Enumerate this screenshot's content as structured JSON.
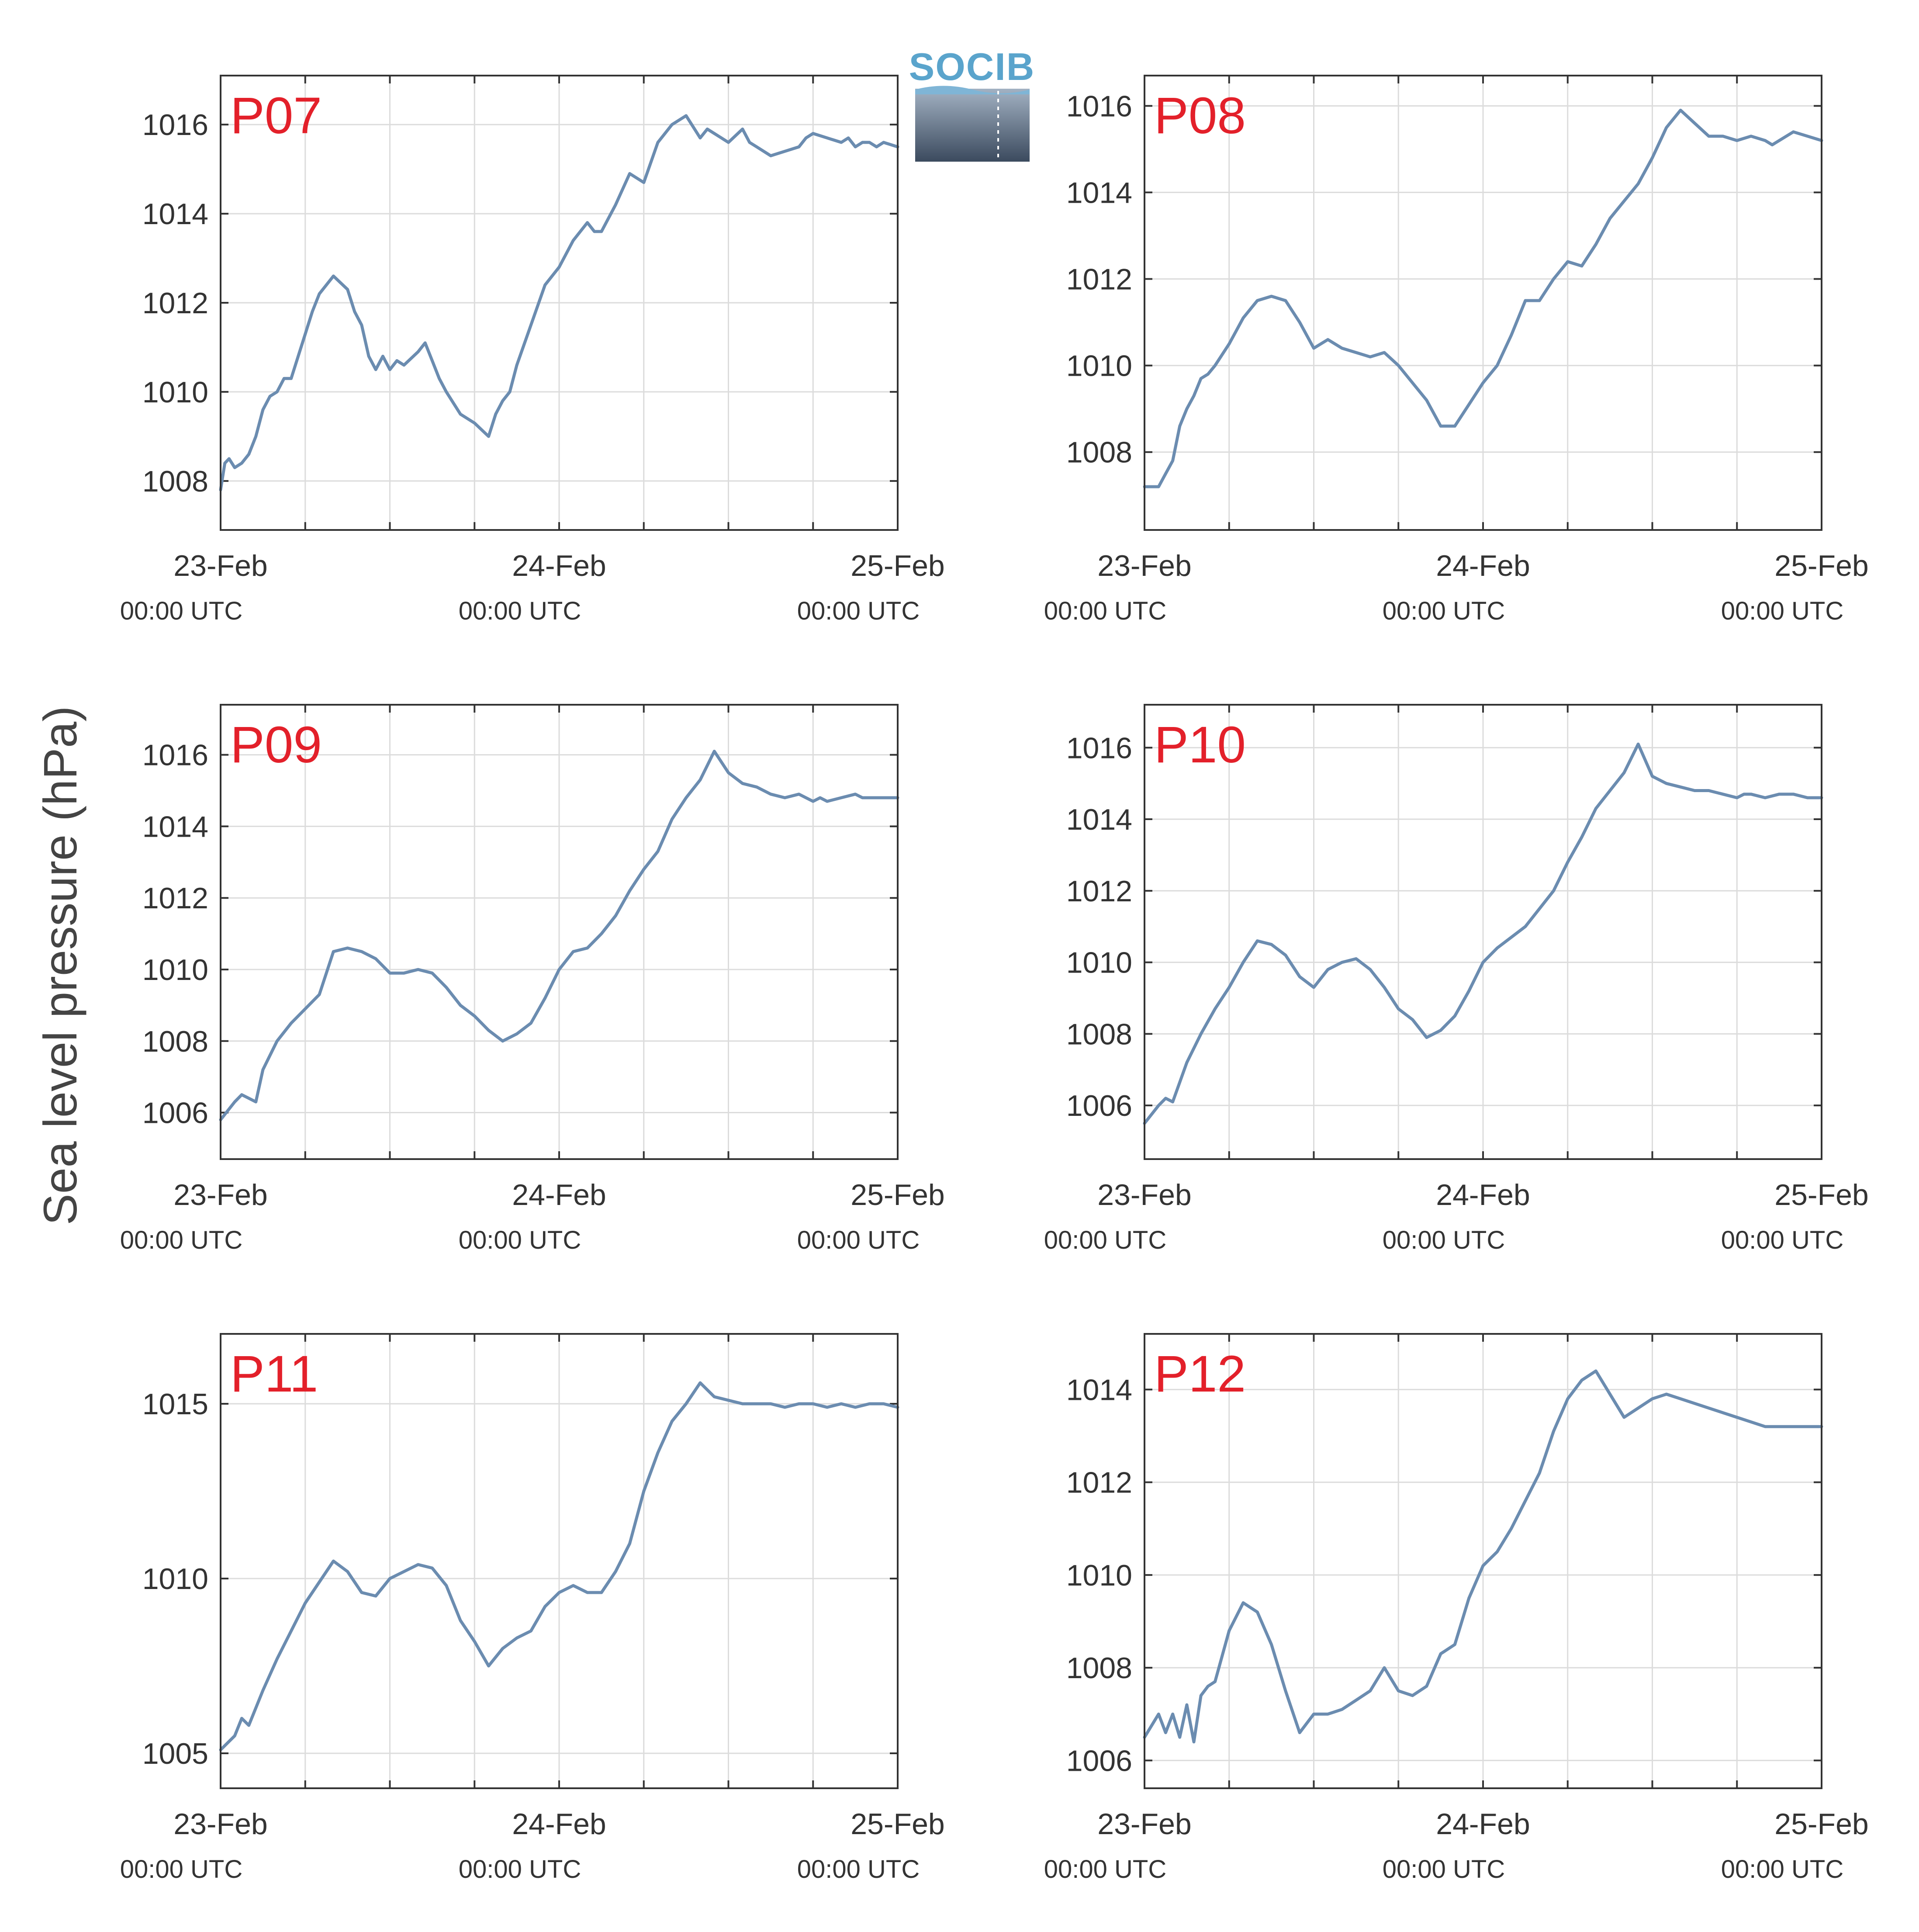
{
  "logo": {
    "text": "SOCIB"
  },
  "colors": {
    "line": "#6b8cb0",
    "label": "#e3202a",
    "grid": "#dcdcdc",
    "axis": "#333333"
  },
  "chart_data": [
    {
      "type": "line",
      "panel": "P07",
      "ylabel": "Sea level pressure (hPa)",
      "xlim": [
        0,
        48
      ],
      "ylim": [
        1006.9,
        1017.1
      ],
      "yticks": [
        1008,
        1010,
        1012,
        1014,
        1016
      ],
      "xticks": [
        0,
        6,
        12,
        18,
        24,
        30,
        36,
        42,
        48
      ],
      "xticklabels": [
        {
          "x": 0,
          "date": "23-Feb",
          "time": "00:00 UTC"
        },
        {
          "x": 24,
          "date": "24-Feb",
          "time": "00:00 UTC"
        },
        {
          "x": 48,
          "date": "25-Feb",
          "time": "00:00 UTC"
        }
      ],
      "grid": true,
      "x": [
        0,
        0.3,
        0.6,
        1,
        1.5,
        2,
        2.5,
        3,
        3.5,
        4,
        4.5,
        5,
        5.5,
        6,
        6.5,
        7,
        8,
        9,
        9.5,
        10,
        10.5,
        11,
        11.5,
        12,
        12.5,
        13,
        14,
        14.5,
        15,
        15.5,
        16,
        17,
        18,
        19,
        19.5,
        20,
        20.5,
        21,
        22,
        23,
        24,
        25,
        26,
        26.5,
        27,
        28,
        29,
        30,
        31,
        32,
        33,
        34,
        34.5,
        35,
        35.5,
        36,
        37,
        37.5,
        38,
        39,
        40,
        41,
        41.5,
        42,
        43,
        44,
        44.5,
        45,
        45.5,
        46,
        46.5,
        47,
        48
      ],
      "values": [
        1007.8,
        1008.4,
        1008.5,
        1008.3,
        1008.4,
        1008.6,
        1009.0,
        1009.6,
        1009.9,
        1010.0,
        1010.3,
        1010.3,
        1010.8,
        1011.3,
        1011.8,
        1012.2,
        1012.6,
        1012.3,
        1011.8,
        1011.5,
        1010.8,
        1010.5,
        1010.8,
        1010.5,
        1010.7,
        1010.6,
        1010.9,
        1011.1,
        1010.7,
        1010.3,
        1010.0,
        1009.5,
        1009.3,
        1009.0,
        1009.5,
        1009.8,
        1010.0,
        1010.6,
        1011.5,
        1012.4,
        1012.8,
        1013.4,
        1013.8,
        1013.6,
        1013.6,
        1014.2,
        1014.9,
        1014.7,
        1015.6,
        1016.0,
        1016.2,
        1015.7,
        1015.9,
        1015.8,
        1015.7,
        1015.6,
        1015.9,
        1015.6,
        1015.5,
        1015.3,
        1015.4,
        1015.5,
        1015.7,
        1015.8,
        1015.7,
        1015.6,
        1015.7,
        1015.5,
        1015.6,
        1015.6,
        1015.5,
        1015.6,
        1015.5
      ]
    },
    {
      "type": "line",
      "panel": "P08",
      "ylabel": "Sea level pressure (hPa)",
      "xlim": [
        0,
        48
      ],
      "ylim": [
        1006.2,
        1016.7
      ],
      "yticks": [
        1008,
        1010,
        1012,
        1014,
        1016
      ],
      "xticks": [
        0,
        6,
        12,
        18,
        24,
        30,
        36,
        42,
        48
      ],
      "xticklabels": [
        {
          "x": 0,
          "date": "23-Feb",
          "time": "00:00 UTC"
        },
        {
          "x": 24,
          "date": "24-Feb",
          "time": "00:00 UTC"
        },
        {
          "x": 48,
          "date": "25-Feb",
          "time": "00:00 UTC"
        }
      ],
      "grid": true,
      "x": [
        0,
        1,
        1.5,
        2,
        2.5,
        3,
        3.5,
        4,
        4.5,
        5,
        6,
        7,
        8,
        9,
        10,
        11,
        12,
        13,
        14,
        15,
        16,
        17,
        18,
        19,
        20,
        21,
        22,
        23,
        24,
        25,
        26,
        27,
        28,
        29,
        30,
        31,
        32,
        33,
        34,
        35,
        36,
        37,
        38,
        39,
        40,
        41,
        42,
        43,
        44,
        44.5,
        45,
        46,
        47,
        48
      ],
      "values": [
        1007.2,
        1007.2,
        1007.5,
        1007.8,
        1008.6,
        1009.0,
        1009.3,
        1009.7,
        1009.8,
        1010.0,
        1010.5,
        1011.1,
        1011.5,
        1011.6,
        1011.5,
        1011.0,
        1010.4,
        1010.6,
        1010.4,
        1010.3,
        1010.2,
        1010.3,
        1010.0,
        1009.6,
        1009.2,
        1008.6,
        1008.6,
        1009.1,
        1009.6,
        1010.0,
        1010.7,
        1011.5,
        1011.5,
        1012.0,
        1012.4,
        1012.3,
        1012.8,
        1013.4,
        1013.8,
        1014.2,
        1014.8,
        1015.5,
        1015.9,
        1015.6,
        1015.3,
        1015.3,
        1015.2,
        1015.3,
        1015.2,
        1015.1,
        1015.2,
        1015.4,
        1015.3,
        1015.2
      ]
    },
    {
      "type": "line",
      "panel": "P09",
      "ylabel": "Sea level pressure (hPa)",
      "xlim": [
        0,
        48
      ],
      "ylim": [
        1004.7,
        1017.4
      ],
      "yticks": [
        1006,
        1008,
        1010,
        1012,
        1014,
        1016
      ],
      "xticks": [
        0,
        6,
        12,
        18,
        24,
        30,
        36,
        42,
        48
      ],
      "xticklabels": [
        {
          "x": 0,
          "date": "23-Feb",
          "time": "00:00 UTC"
        },
        {
          "x": 24,
          "date": "24-Feb",
          "time": "00:00 UTC"
        },
        {
          "x": 48,
          "date": "25-Feb",
          "time": "00:00 UTC"
        }
      ],
      "grid": true,
      "x": [
        0,
        1,
        1.5,
        2,
        2.5,
        3,
        4,
        5,
        6,
        7,
        8,
        9,
        10,
        11,
        12,
        13,
        14,
        15,
        16,
        17,
        18,
        19,
        20,
        21,
        22,
        23,
        24,
        25,
        26,
        27,
        28,
        29,
        30,
        31,
        32,
        33,
        34,
        35,
        36,
        37,
        38,
        39,
        40,
        41,
        42,
        42.5,
        43,
        44,
        45,
        45.5,
        46,
        47,
        48
      ],
      "values": [
        1005.8,
        1006.3,
        1006.5,
        1006.4,
        1006.3,
        1007.2,
        1008.0,
        1008.5,
        1008.9,
        1009.3,
        1010.5,
        1010.6,
        1010.5,
        1010.3,
        1009.9,
        1009.9,
        1010.0,
        1009.9,
        1009.5,
        1009.0,
        1008.7,
        1008.3,
        1008.0,
        1008.2,
        1008.5,
        1009.2,
        1010.0,
        1010.5,
        1010.6,
        1011.0,
        1011.5,
        1012.2,
        1012.8,
        1013.3,
        1014.2,
        1014.8,
        1015.3,
        1016.1,
        1015.5,
        1015.2,
        1015.1,
        1014.9,
        1014.8,
        1014.9,
        1014.7,
        1014.8,
        1014.7,
        1014.8,
        1014.9,
        1014.8,
        1014.8,
        1014.8,
        1014.8
      ]
    },
    {
      "type": "line",
      "panel": "P10",
      "ylabel": "Sea level pressure (hPa)",
      "xlim": [
        0,
        48
      ],
      "ylim": [
        1004.5,
        1017.2
      ],
      "yticks": [
        1006,
        1008,
        1010,
        1012,
        1014,
        1016
      ],
      "xticks": [
        0,
        6,
        12,
        18,
        24,
        30,
        36,
        42,
        48
      ],
      "xticklabels": [
        {
          "x": 0,
          "date": "23-Feb",
          "time": "00:00 UTC"
        },
        {
          "x": 24,
          "date": "24-Feb",
          "time": "00:00 UTC"
        },
        {
          "x": 48,
          "date": "25-Feb",
          "time": "00:00 UTC"
        }
      ],
      "grid": true,
      "x": [
        0,
        1,
        1.5,
        2,
        3,
        4,
        5,
        6,
        7,
        8,
        9,
        10,
        11,
        12,
        13,
        14,
        15,
        16,
        17,
        18,
        19,
        20,
        21,
        22,
        23,
        24,
        25,
        26,
        27,
        28,
        29,
        30,
        31,
        32,
        33,
        34,
        35,
        36,
        37,
        38,
        39,
        40,
        41,
        42,
        42.5,
        43,
        44,
        45,
        46,
        47,
        48
      ],
      "values": [
        1005.5,
        1006.0,
        1006.2,
        1006.1,
        1007.2,
        1008.0,
        1008.7,
        1009.3,
        1010.0,
        1010.6,
        1010.5,
        1010.2,
        1009.6,
        1009.3,
        1009.8,
        1010.0,
        1010.1,
        1009.8,
        1009.3,
        1008.7,
        1008.4,
        1007.9,
        1008.1,
        1008.5,
        1009.2,
        1010.0,
        1010.4,
        1010.7,
        1011.0,
        1011.5,
        1012.0,
        1012.8,
        1013.5,
        1014.3,
        1014.8,
        1015.3,
        1016.1,
        1015.2,
        1015.0,
        1014.9,
        1014.8,
        1014.8,
        1014.7,
        1014.6,
        1014.7,
        1014.7,
        1014.6,
        1014.7,
        1014.7,
        1014.6,
        1014.6
      ]
    },
    {
      "type": "line",
      "panel": "P11",
      "ylabel": "Sea level pressure (hPa)",
      "xlim": [
        0,
        48
      ],
      "ylim": [
        1004.0,
        1017.0
      ],
      "yticks": [
        1005,
        1010,
        1015
      ],
      "xticks": [
        0,
        6,
        12,
        18,
        24,
        30,
        36,
        42,
        48
      ],
      "xticklabels": [
        {
          "x": 0,
          "date": "23-Feb",
          "time": "00:00 UTC"
        },
        {
          "x": 24,
          "date": "24-Feb",
          "time": "00:00 UTC"
        },
        {
          "x": 48,
          "date": "25-Feb",
          "time": "00:00 UTC"
        }
      ],
      "grid": true,
      "x": [
        0,
        1,
        1.5,
        2,
        3,
        4,
        5,
        6,
        7,
        8,
        9,
        10,
        11,
        12,
        13,
        14,
        15,
        16,
        17,
        18,
        19,
        20,
        21,
        22,
        23,
        24,
        25,
        26,
        27,
        28,
        29,
        30,
        31,
        32,
        33,
        34,
        35,
        36,
        37,
        38,
        39,
        40,
        41,
        42,
        43,
        44,
        45,
        46,
        47,
        48
      ],
      "values": [
        1005.1,
        1005.5,
        1006.0,
        1005.8,
        1006.8,
        1007.7,
        1008.5,
        1009.3,
        1009.9,
        1010.5,
        1010.2,
        1009.6,
        1009.5,
        1010.0,
        1010.2,
        1010.4,
        1010.3,
        1009.8,
        1008.8,
        1008.2,
        1007.5,
        1008.0,
        1008.3,
        1008.5,
        1009.2,
        1009.6,
        1009.8,
        1009.6,
        1009.6,
        1010.2,
        1011.0,
        1012.5,
        1013.6,
        1014.5,
        1015.0,
        1015.6,
        1015.2,
        1015.1,
        1015.0,
        1015.0,
        1015.0,
        1014.9,
        1015.0,
        1015.0,
        1014.9,
        1015.0,
        1014.9,
        1015.0,
        1015.0,
        1014.9
      ]
    },
    {
      "type": "line",
      "panel": "P12",
      "ylabel": "Sea level pressure (hPa)",
      "xlim": [
        0,
        48
      ],
      "ylim": [
        1005.4,
        1015.2
      ],
      "yticks": [
        1006,
        1008,
        1010,
        1012,
        1014
      ],
      "xticks": [
        0,
        6,
        12,
        18,
        24,
        30,
        36,
        42,
        48
      ],
      "xticklabels": [
        {
          "x": 0,
          "date": "23-Feb",
          "time": "00:00 UTC"
        },
        {
          "x": 24,
          "date": "24-Feb",
          "time": "00:00 UTC"
        },
        {
          "x": 48,
          "date": "25-Feb",
          "time": "00:00 UTC"
        }
      ],
      "grid": true,
      "x": [
        0,
        1,
        1.5,
        2,
        2.5,
        3,
        3.5,
        4,
        4.5,
        5,
        6,
        7,
        8,
        9,
        10,
        11,
        12,
        13,
        14,
        15,
        16,
        17,
        18,
        19,
        20,
        21,
        22,
        23,
        24,
        25,
        26,
        27,
        28,
        29,
        30,
        31,
        32,
        33,
        34,
        35,
        36,
        37,
        38,
        39,
        40,
        41,
        42,
        43,
        44,
        45,
        46,
        47,
        48
      ],
      "values": [
        1006.5,
        1007.0,
        1006.6,
        1007.0,
        1006.5,
        1007.2,
        1006.4,
        1007.4,
        1007.6,
        1007.7,
        1008.8,
        1009.4,
        1009.2,
        1008.5,
        1007.5,
        1006.6,
        1007.0,
        1007.0,
        1007.1,
        1007.3,
        1007.5,
        1008.0,
        1007.5,
        1007.4,
        1007.6,
        1008.3,
        1008.5,
        1009.5,
        1010.2,
        1010.5,
        1011.0,
        1011.6,
        1012.2,
        1013.1,
        1013.8,
        1014.2,
        1014.4,
        1013.9,
        1013.4,
        1013.6,
        1013.8,
        1013.9,
        1013.8,
        1013.7,
        1013.6,
        1013.5,
        1013.4,
        1013.3,
        1013.2,
        1013.2,
        1013.2,
        1013.2,
        1013.2
      ]
    }
  ]
}
